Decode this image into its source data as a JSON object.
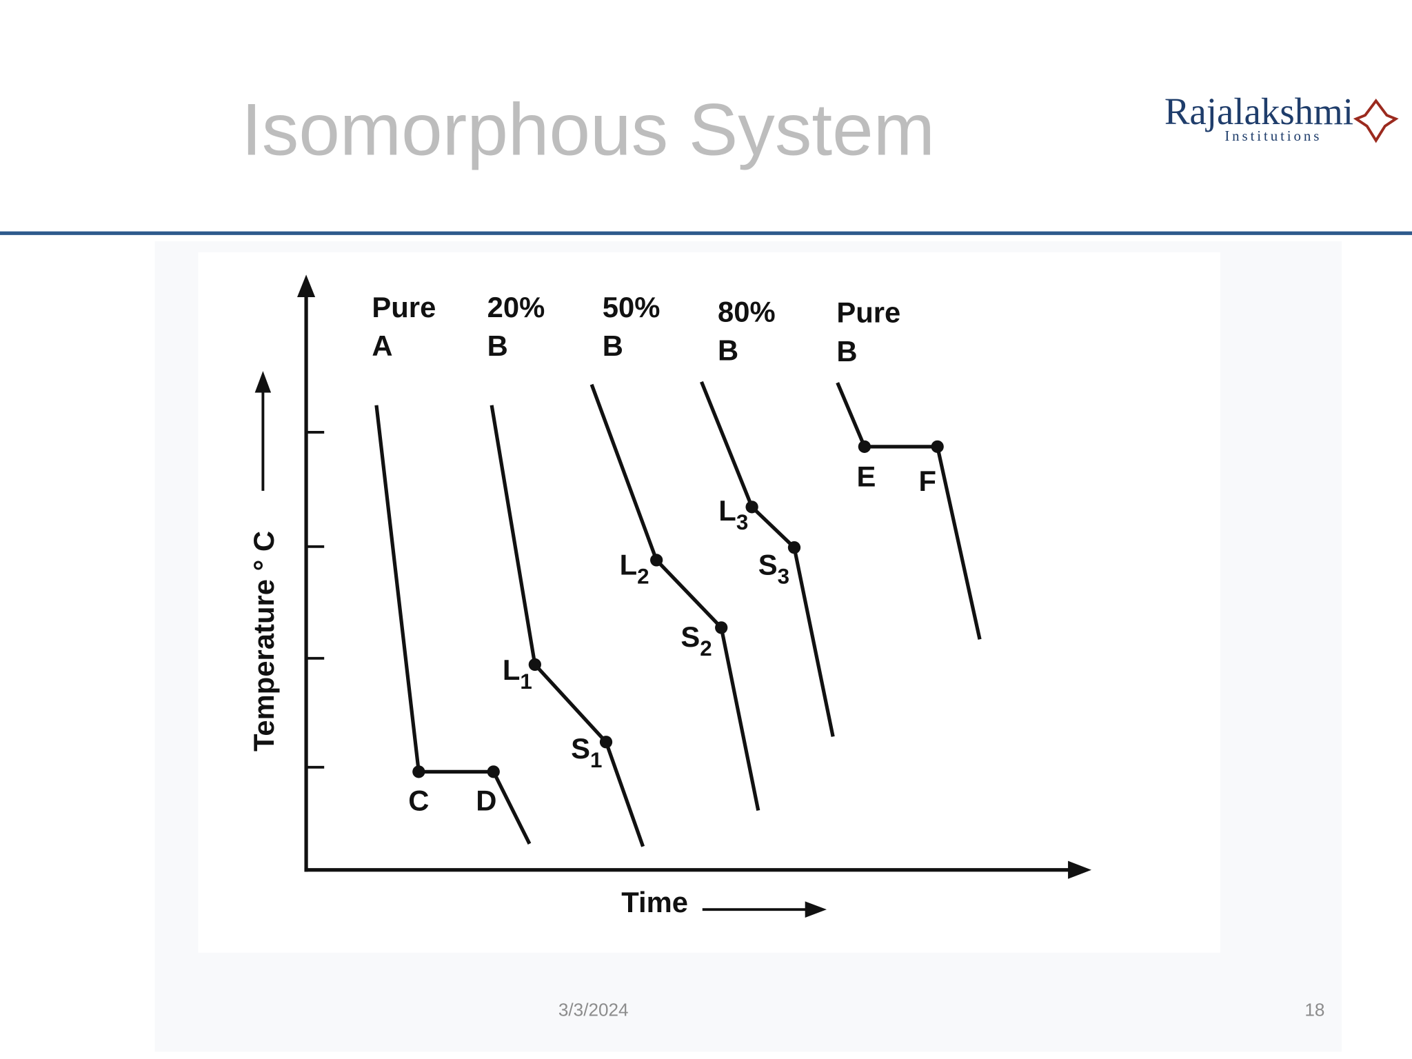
{
  "header": {
    "title": "Isomorphous System",
    "logo": {
      "name": "Rajalakshmi",
      "subtitle": "Institutions"
    }
  },
  "diagram": {
    "y_label": "Temperature ° C",
    "x_label": "Time",
    "curves": [
      {
        "label": [
          "Pure",
          "A"
        ],
        "points": [
          {
            "text": "C"
          },
          {
            "text": "D"
          }
        ]
      },
      {
        "label": [
          "20%",
          "B"
        ],
        "points": [
          {
            "text": "L",
            "sub": "1"
          },
          {
            "text": "S",
            "sub": "1"
          }
        ]
      },
      {
        "label": [
          "50%",
          "B"
        ],
        "points": [
          {
            "text": "L",
            "sub": "2"
          },
          {
            "text": "S",
            "sub": "2"
          }
        ]
      },
      {
        "label": [
          "80%",
          "B"
        ],
        "points": [
          {
            "text": "L",
            "sub": "3"
          },
          {
            "text": "S",
            "sub": "3"
          }
        ]
      },
      {
        "label": [
          "Pure",
          "B"
        ],
        "points": [
          {
            "text": "E"
          },
          {
            "text": "F"
          }
        ]
      }
    ]
  },
  "footer": {
    "date": "3/3/2024",
    "page_number": "18"
  }
}
